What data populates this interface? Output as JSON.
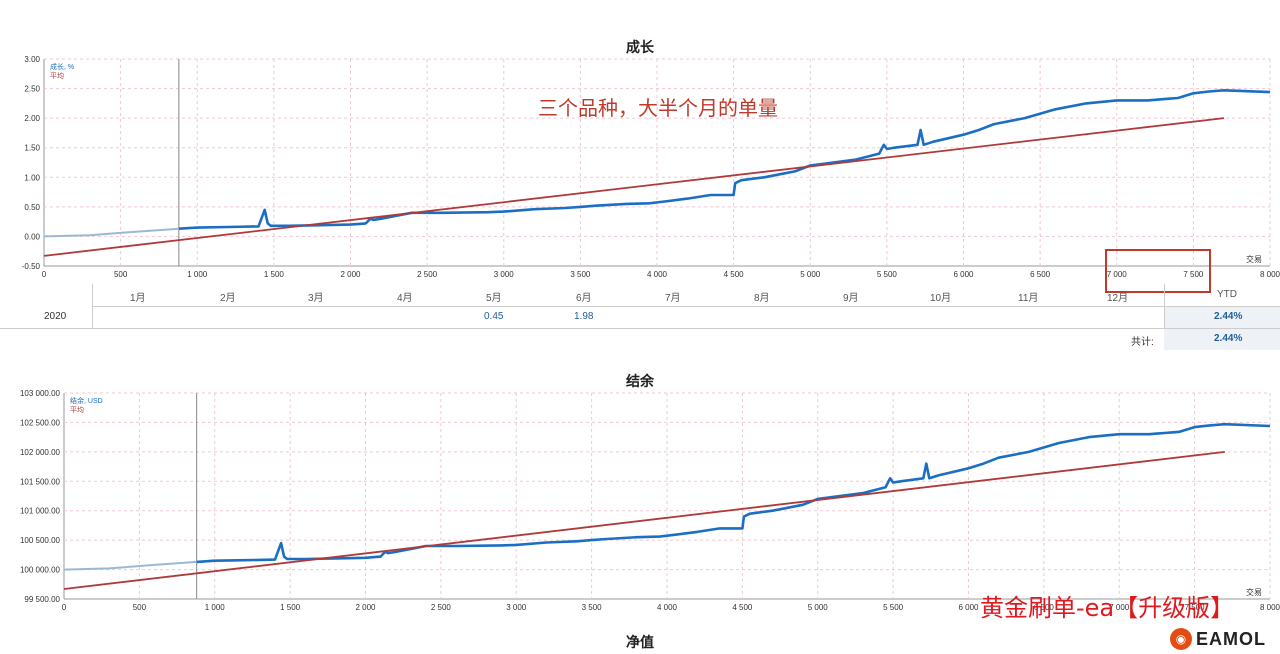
{
  "annotation": "三个品种，大半个月的单量",
  "chart_data": [
    {
      "type": "line",
      "title": "成长",
      "legend": [
        "成长, %",
        "平均"
      ],
      "xlabel": "交易",
      "xlim": [
        0,
        8000
      ],
      "ylim": [
        -0.5,
        3.0
      ],
      "x_ticks": [
        "0",
        "500",
        "1 000",
        "1 500",
        "2 000",
        "2 500",
        "3 000",
        "3 500",
        "4 000",
        "4 500",
        "5 000",
        "5 500",
        "6 000",
        "6 500",
        "7 000",
        "7 500",
        "8 000"
      ],
      "y_ticks": [
        "-0.50",
        "0.00",
        "0.50",
        "1.00",
        "1.50",
        "2.00",
        "2.50",
        "3.00"
      ],
      "series": [
        {
          "name": "成长, %",
          "color": "#1a6fc4",
          "x": [
            0,
            300,
            600,
            880,
            1000,
            1200,
            1400,
            1440,
            1460,
            1480,
            1600,
            1800,
            2000,
            2100,
            2130,
            2150,
            2200,
            2300,
            2400,
            2600,
            2900,
            3000,
            3200,
            3400,
            3500,
            3600,
            3800,
            3950,
            4050,
            4200,
            4350,
            4500,
            4510,
            4550,
            4700,
            4800,
            4900,
            5000,
            5300,
            5450,
            5480,
            5500,
            5550,
            5700,
            5720,
            5740,
            5800,
            6000,
            6100,
            6200,
            6400,
            6600,
            6800,
            7000,
            7100,
            7200,
            7250,
            7300,
            7350,
            7400,
            7500,
            7600,
            7700,
            8000
          ],
          "y": [
            0.0,
            0.02,
            0.08,
            0.13,
            0.15,
            0.16,
            0.17,
            0.45,
            0.22,
            0.18,
            0.18,
            0.19,
            0.2,
            0.22,
            0.3,
            0.28,
            0.3,
            0.35,
            0.4,
            0.4,
            0.41,
            0.42,
            0.46,
            0.48,
            0.5,
            0.52,
            0.55,
            0.56,
            0.59,
            0.64,
            0.7,
            0.7,
            0.9,
            0.95,
            1.0,
            1.05,
            1.1,
            1.2,
            1.3,
            1.4,
            1.55,
            1.48,
            1.5,
            1.55,
            1.8,
            1.55,
            1.6,
            1.72,
            1.8,
            1.9,
            2.0,
            2.15,
            2.25,
            2.3,
            2.3,
            2.3,
            2.31,
            2.32,
            2.33,
            2.34,
            2.42,
            2.45,
            2.47,
            2.44
          ]
        },
        {
          "name": "平均",
          "color": "#b03a3a",
          "x": [
            0,
            7700
          ],
          "y": [
            -0.33,
            2.0
          ]
        }
      ]
    },
    {
      "type": "line",
      "title": "结余",
      "legend": [
        "结余, USD",
        "平均"
      ],
      "xlabel": "交易",
      "xlim": [
        0,
        8000
      ],
      "ylim": [
        99500,
        103000
      ],
      "x_ticks": [
        "0",
        "500",
        "1 000",
        "1 500",
        "2 000",
        "2 500",
        "3 000",
        "3 500",
        "4 000",
        "4 500",
        "5 000",
        "5 500",
        "6 000",
        "6 500",
        "7 000",
        "7 500",
        "8 000"
      ],
      "y_ticks": [
        "99 500.00",
        "100 000.00",
        "100 500.00",
        "101 000.00",
        "101 500.00",
        "102 000.00",
        "102 500.00",
        "103 000.00"
      ],
      "series": [
        {
          "name": "结余, USD",
          "color": "#1a6fc4",
          "x": [
            0,
            300,
            600,
            880,
            1000,
            1200,
            1400,
            1440,
            1460,
            1480,
            1600,
            1800,
            2000,
            2100,
            2130,
            2150,
            2200,
            2300,
            2400,
            2600,
            2900,
            3000,
            3200,
            3400,
            3500,
            3600,
            3800,
            3950,
            4050,
            4200,
            4350,
            4500,
            4510,
            4550,
            4700,
            4800,
            4900,
            5000,
            5300,
            5450,
            5480,
            5500,
            5550,
            5700,
            5720,
            5740,
            5800,
            6000,
            6100,
            6200,
            6400,
            6600,
            6800,
            7000,
            7100,
            7200,
            7250,
            7300,
            7350,
            7400,
            7500,
            7600,
            7700,
            8000
          ],
          "y": [
            100000,
            100020,
            100080,
            100130,
            100150,
            100160,
            100170,
            100450,
            100220,
            100180,
            100180,
            100190,
            100200,
            100220,
            100300,
            100280,
            100300,
            100350,
            100400,
            100400,
            100410,
            100420,
            100460,
            100480,
            100500,
            100520,
            100550,
            100560,
            100590,
            100640,
            100700,
            100700,
            100900,
            100950,
            101000,
            101050,
            101100,
            101200,
            101300,
            101400,
            101550,
            101480,
            101500,
            101550,
            101800,
            101550,
            101600,
            101720,
            101800,
            101900,
            102000,
            102150,
            102250,
            102300,
            102300,
            102300,
            102310,
            102320,
            102330,
            102340,
            102420,
            102450,
            102470,
            102440
          ]
        },
        {
          "name": "平均",
          "color": "#b03a3a",
          "x": [
            0,
            7700
          ],
          "y": [
            99670,
            102000
          ]
        }
      ]
    }
  ],
  "ytd_table": {
    "months": [
      "1月",
      "2月",
      "3月",
      "4月",
      "5月",
      "6月",
      "7月",
      "8月",
      "9月",
      "10月",
      "11月",
      "12月"
    ],
    "ytd_header": "YTD",
    "year": "2020",
    "may_value": "0.45",
    "jun_value": "1.98",
    "ytd_value": "2.44%",
    "total_label": "共计:",
    "total_value": "2.44%"
  },
  "next_chart_title": "净值",
  "watermark": "黄金刷单-ea【升级版】",
  "logo_text": "EAMOL"
}
